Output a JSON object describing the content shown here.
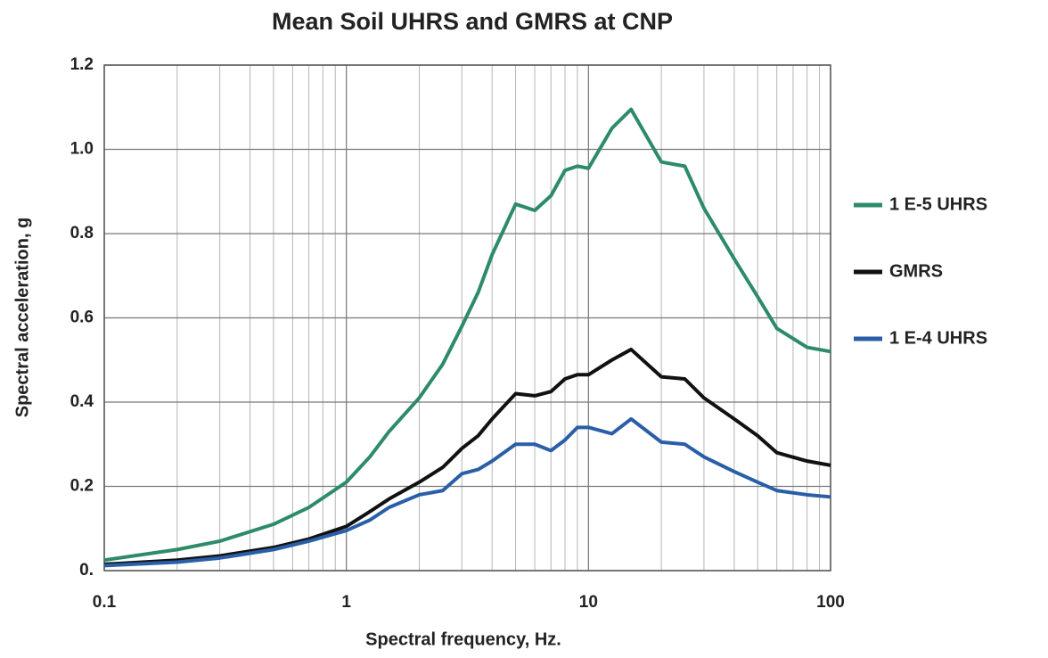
{
  "chart_data": {
    "type": "line",
    "title": "Mean Soil UHRS and GMRS at CNP",
    "x_label": "Spectral frequency, Hz.",
    "y_label": "Spectral acceleration, g",
    "x": [
      0.1,
      0.2,
      0.3,
      0.5,
      0.7,
      1,
      1.25,
      1.5,
      2,
      2.5,
      3,
      3.5,
      4,
      5,
      6,
      7,
      8,
      9,
      10,
      12.5,
      15,
      20,
      25,
      30,
      40,
      50,
      60,
      80,
      100
    ],
    "series": [
      {
        "name": "1 E-5 UHRS",
        "color": "#2e8b6a",
        "values": [
          0.025,
          0.05,
          0.07,
          0.11,
          0.15,
          0.21,
          0.27,
          0.33,
          0.41,
          0.49,
          0.58,
          0.66,
          0.75,
          0.87,
          0.855,
          0.89,
          0.95,
          0.96,
          0.955,
          1.05,
          1.095,
          0.97,
          0.96,
          0.86,
          0.74,
          0.65,
          0.575,
          0.53,
          0.52
        ]
      },
      {
        "name": "GMRS",
        "color": "#111111",
        "values": [
          0.015,
          0.025,
          0.035,
          0.055,
          0.075,
          0.105,
          0.14,
          0.17,
          0.21,
          0.245,
          0.29,
          0.32,
          0.36,
          0.42,
          0.415,
          0.425,
          0.455,
          0.465,
          0.465,
          0.5,
          0.525,
          0.46,
          0.455,
          0.41,
          0.36,
          0.32,
          0.28,
          0.26,
          0.25
        ]
      },
      {
        "name": "1 E-4 UHRS",
        "color": "#2a5fa8",
        "values": [
          0.012,
          0.02,
          0.03,
          0.05,
          0.07,
          0.095,
          0.12,
          0.15,
          0.18,
          0.19,
          0.23,
          0.24,
          0.26,
          0.3,
          0.3,
          0.285,
          0.31,
          0.34,
          0.34,
          0.325,
          0.36,
          0.305,
          0.3,
          0.27,
          0.235,
          0.21,
          0.19,
          0.18,
          0.175
        ]
      }
    ],
    "xlim": [
      0.1,
      100
    ],
    "xticks": [
      0.1,
      1,
      10,
      100
    ],
    "x_log": true,
    "ylim": [
      0,
      1.2
    ],
    "yticks": [
      {
        "value": 0,
        "label": "0."
      },
      0.2,
      0.4,
      0.6,
      0.8,
      {
        "value": 1,
        "label": "1.0"
      },
      1.2
    ],
    "grid": true,
    "minor_grid": true,
    "legend": "right"
  }
}
